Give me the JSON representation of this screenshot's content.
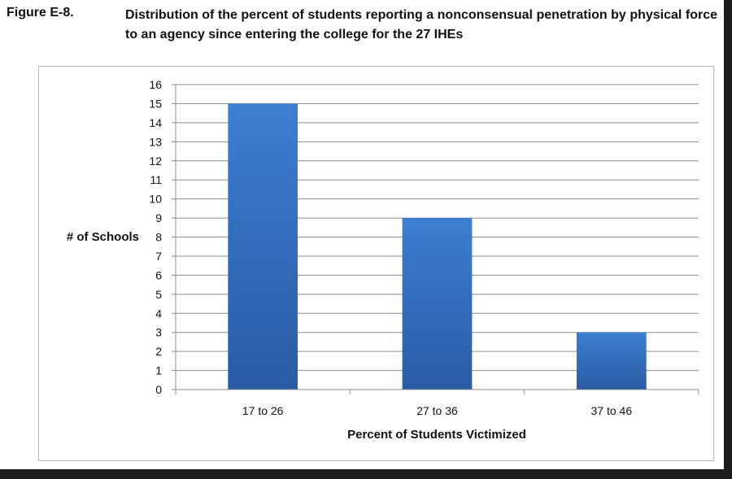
{
  "figure": {
    "label": "Figure E-8.",
    "title": "Distribution of the percent of students reporting a nonconsensual penetration by physical force to an agency since entering the college for the 27 IHEs"
  },
  "chart_data": {
    "type": "bar",
    "title": "",
    "categories": [
      "17 to 26",
      "27 to 36",
      "37 to 46"
    ],
    "values": [
      15,
      9,
      3
    ],
    "xlabel": "Percent of Students Victimized",
    "ylabel": "# of Schools",
    "ylim": [
      0,
      16
    ],
    "yticks": [
      0,
      1,
      2,
      3,
      4,
      5,
      6,
      7,
      8,
      9,
      10,
      11,
      12,
      13,
      14,
      15,
      16
    ],
    "grid": true,
    "legend": "none",
    "bar_color_top": "#3d7fd0",
    "bar_color_bottom": "#2a5ba3"
  }
}
